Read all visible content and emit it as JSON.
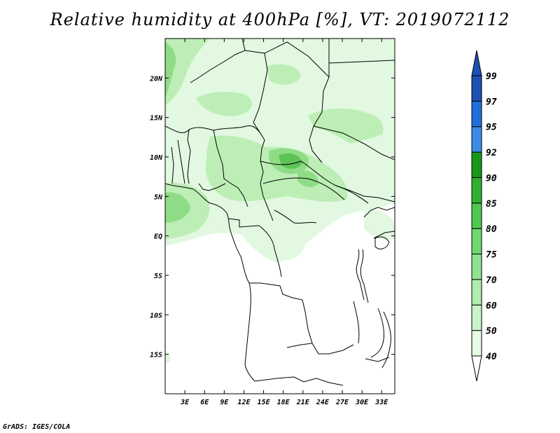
{
  "title": "Relative humidity at 400hPa [%], VT: 2019072112",
  "credit": "GrADS: IGES/COLA",
  "map": {
    "lon_range": [
      0,
      35
    ],
    "lat_range": [
      -20,
      25
    ],
    "lon_ticks": [
      {
        "value": 3,
        "label": "3E"
      },
      {
        "value": 6,
        "label": "6E"
      },
      {
        "value": 9,
        "label": "9E"
      },
      {
        "value": 12,
        "label": "12E"
      },
      {
        "value": 15,
        "label": "15E"
      },
      {
        "value": 18,
        "label": "18E"
      },
      {
        "value": 21,
        "label": "21E"
      },
      {
        "value": 24,
        "label": "24E"
      },
      {
        "value": 27,
        "label": "27E"
      },
      {
        "value": 30,
        "label": "30E"
      },
      {
        "value": 33,
        "label": "33E"
      }
    ],
    "lat_ticks": [
      {
        "value": 20,
        "label": "20N"
      },
      {
        "value": 15,
        "label": "15N"
      },
      {
        "value": 10,
        "label": "10N"
      },
      {
        "value": 5,
        "label": "5N"
      },
      {
        "value": 0,
        "label": "EQ"
      },
      {
        "value": -5,
        "label": "5S"
      },
      {
        "value": -10,
        "label": "10S"
      },
      {
        "value": -15,
        "label": "15S"
      }
    ]
  },
  "colorbar": {
    "levels": [
      "40",
      "50",
      "60",
      "70",
      "75",
      "80",
      "85",
      "90",
      "92",
      "95",
      "97",
      "99"
    ],
    "colors": [
      "#ffffff",
      "#e6fbe6",
      "#c8f4c8",
      "#b0ecb0",
      "#90e290",
      "#70d870",
      "#50c850",
      "#30b030",
      "#189818",
      "#3c8ce6",
      "#2070dc",
      "#1e50b4"
    ]
  },
  "field_colors": {
    "light": "#e2f8e0",
    "mid": "#bdeeb6",
    "strong": "#8fdc86",
    "deep": "#5cc455"
  }
}
